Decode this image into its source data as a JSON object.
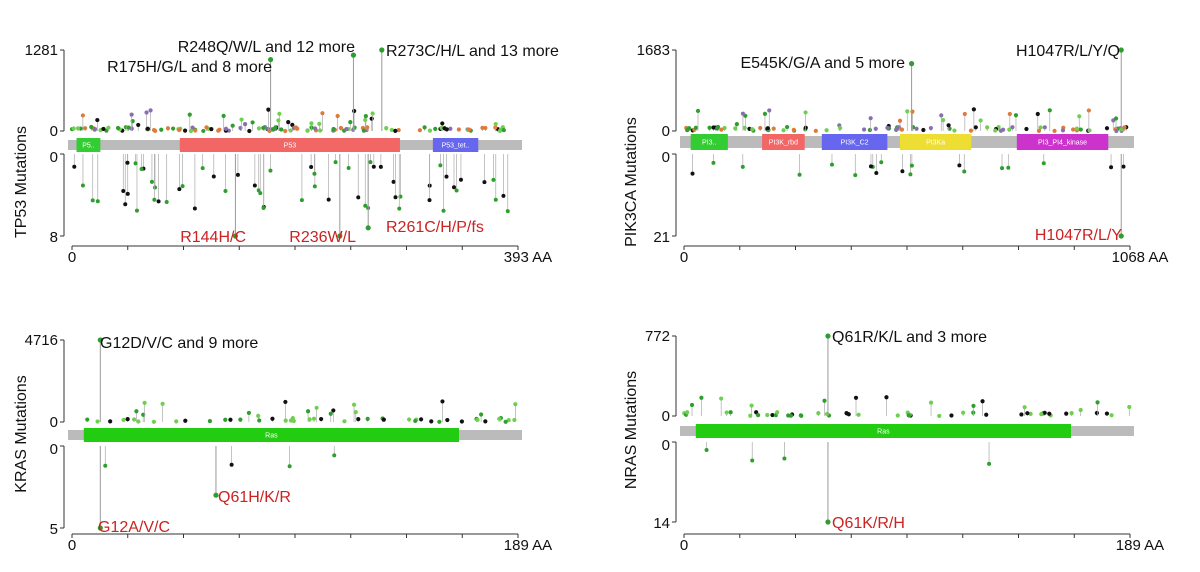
{
  "chart_data": [
    {
      "type": "lollipop",
      "gene": "TP53",
      "ylabel": "TP53 Mutations",
      "protein_length": 393,
      "x_min_label": "0",
      "x_max_label": "393 AA",
      "top_axis": {
        "min": 0,
        "max": 1281,
        "max_label": "1281",
        "min_label": "0"
      },
      "bottom_axis": {
        "min": 0,
        "max": 8,
        "max_label": "8",
        "min_label": "0"
      },
      "domains": [
        {
          "name": "P5..",
          "start": 4,
          "end": 25,
          "color": "#33cc33"
        },
        {
          "name": "P53",
          "start": 95,
          "end": 289,
          "color": "#f26666"
        },
        {
          "name": "P53_tet..",
          "start": 318,
          "end": 358,
          "color": "#6666ee"
        }
      ],
      "top_annotations": [
        {
          "label": "R248Q/W/L and 12 more",
          "position": 248,
          "value": 1200
        },
        {
          "label": "R175H/G/L and 8 more",
          "position": 175,
          "value": 1130
        },
        {
          "label": "R273C/H/L and 13 more",
          "position": 273,
          "value": 1281
        }
      ],
      "bottom_annotations": [
        {
          "label": "R144H/C",
          "position": 144,
          "value": 8
        },
        {
          "label": "R236W/L",
          "position": 236,
          "value": 8
        },
        {
          "label": "R261C/H/P/fs",
          "position": 261,
          "value": 7.2
        }
      ]
    },
    {
      "type": "lollipop",
      "gene": "PIK3CA",
      "ylabel": "PIK3CA Mutations",
      "protein_length": 1068,
      "x_min_label": "0",
      "x_max_label": "1068 AA",
      "top_axis": {
        "min": 0,
        "max": 1683,
        "max_label": "1683",
        "min_label": "0"
      },
      "bottom_axis": {
        "min": 0,
        "max": 21,
        "max_label": "21",
        "min_label": "0"
      },
      "domains": [
        {
          "name": "PI3..",
          "start": 16,
          "end": 105,
          "color": "#33cc33"
        },
        {
          "name": "PI3K_rbd",
          "start": 187,
          "end": 289,
          "color": "#f26666"
        },
        {
          "name": "PI3K_C2",
          "start": 330,
          "end": 487,
          "color": "#6666ee"
        },
        {
          "name": "PI3Ka",
          "start": 517,
          "end": 688,
          "color": "#eedd33"
        },
        {
          "name": "PI3_PI4_kinase",
          "start": 797,
          "end": 1016,
          "color": "#cc33cc"
        }
      ],
      "top_annotations": [
        {
          "label": "E545K/G/A and 5 more",
          "position": 545,
          "value": 1400
        },
        {
          "label": "H1047R/L/Y/Q",
          "position": 1047,
          "value": 1683
        }
      ],
      "bottom_annotations": [
        {
          "label": "H1047R/L/Y",
          "position": 1047,
          "value": 21
        }
      ]
    },
    {
      "type": "lollipop",
      "gene": "KRAS",
      "ylabel": "KRAS Mutations",
      "protein_length": 189,
      "x_min_label": "0",
      "x_max_label": "189 AA",
      "top_axis": {
        "min": 0,
        "max": 4716,
        "max_label": "4716",
        "min_label": "0"
      },
      "bottom_axis": {
        "min": 0,
        "max": 5,
        "max_label": "5",
        "min_label": "0"
      },
      "domains": [
        {
          "name": "Ras",
          "start": 5,
          "end": 164,
          "color": "#22cc11"
        }
      ],
      "top_annotations": [
        {
          "label": "G12D/V/C and 9 more",
          "position": 12,
          "value": 4716
        }
      ],
      "bottom_annotations": [
        {
          "label": "Q61H/K/R",
          "position": 61,
          "value": 3
        },
        {
          "label": "G12A/V/C",
          "position": 12,
          "value": 5
        }
      ]
    },
    {
      "type": "lollipop",
      "gene": "NRAS",
      "ylabel": "NRAS Mutations",
      "protein_length": 189,
      "x_min_label": "0",
      "x_max_label": "189 AA",
      "top_axis": {
        "min": 0,
        "max": 772,
        "max_label": "772",
        "min_label": "0"
      },
      "bottom_axis": {
        "min": 0,
        "max": 14,
        "max_label": "14",
        "min_label": "0"
      },
      "domains": [
        {
          "name": "Ras",
          "start": 5,
          "end": 164,
          "color": "#22cc11"
        }
      ],
      "top_annotations": [
        {
          "label": "Q61R/K/L and 3 more",
          "position": 61,
          "value": 772
        }
      ],
      "bottom_annotations": [
        {
          "label": "Q61K/R/H",
          "position": 61,
          "value": 14
        }
      ]
    }
  ]
}
